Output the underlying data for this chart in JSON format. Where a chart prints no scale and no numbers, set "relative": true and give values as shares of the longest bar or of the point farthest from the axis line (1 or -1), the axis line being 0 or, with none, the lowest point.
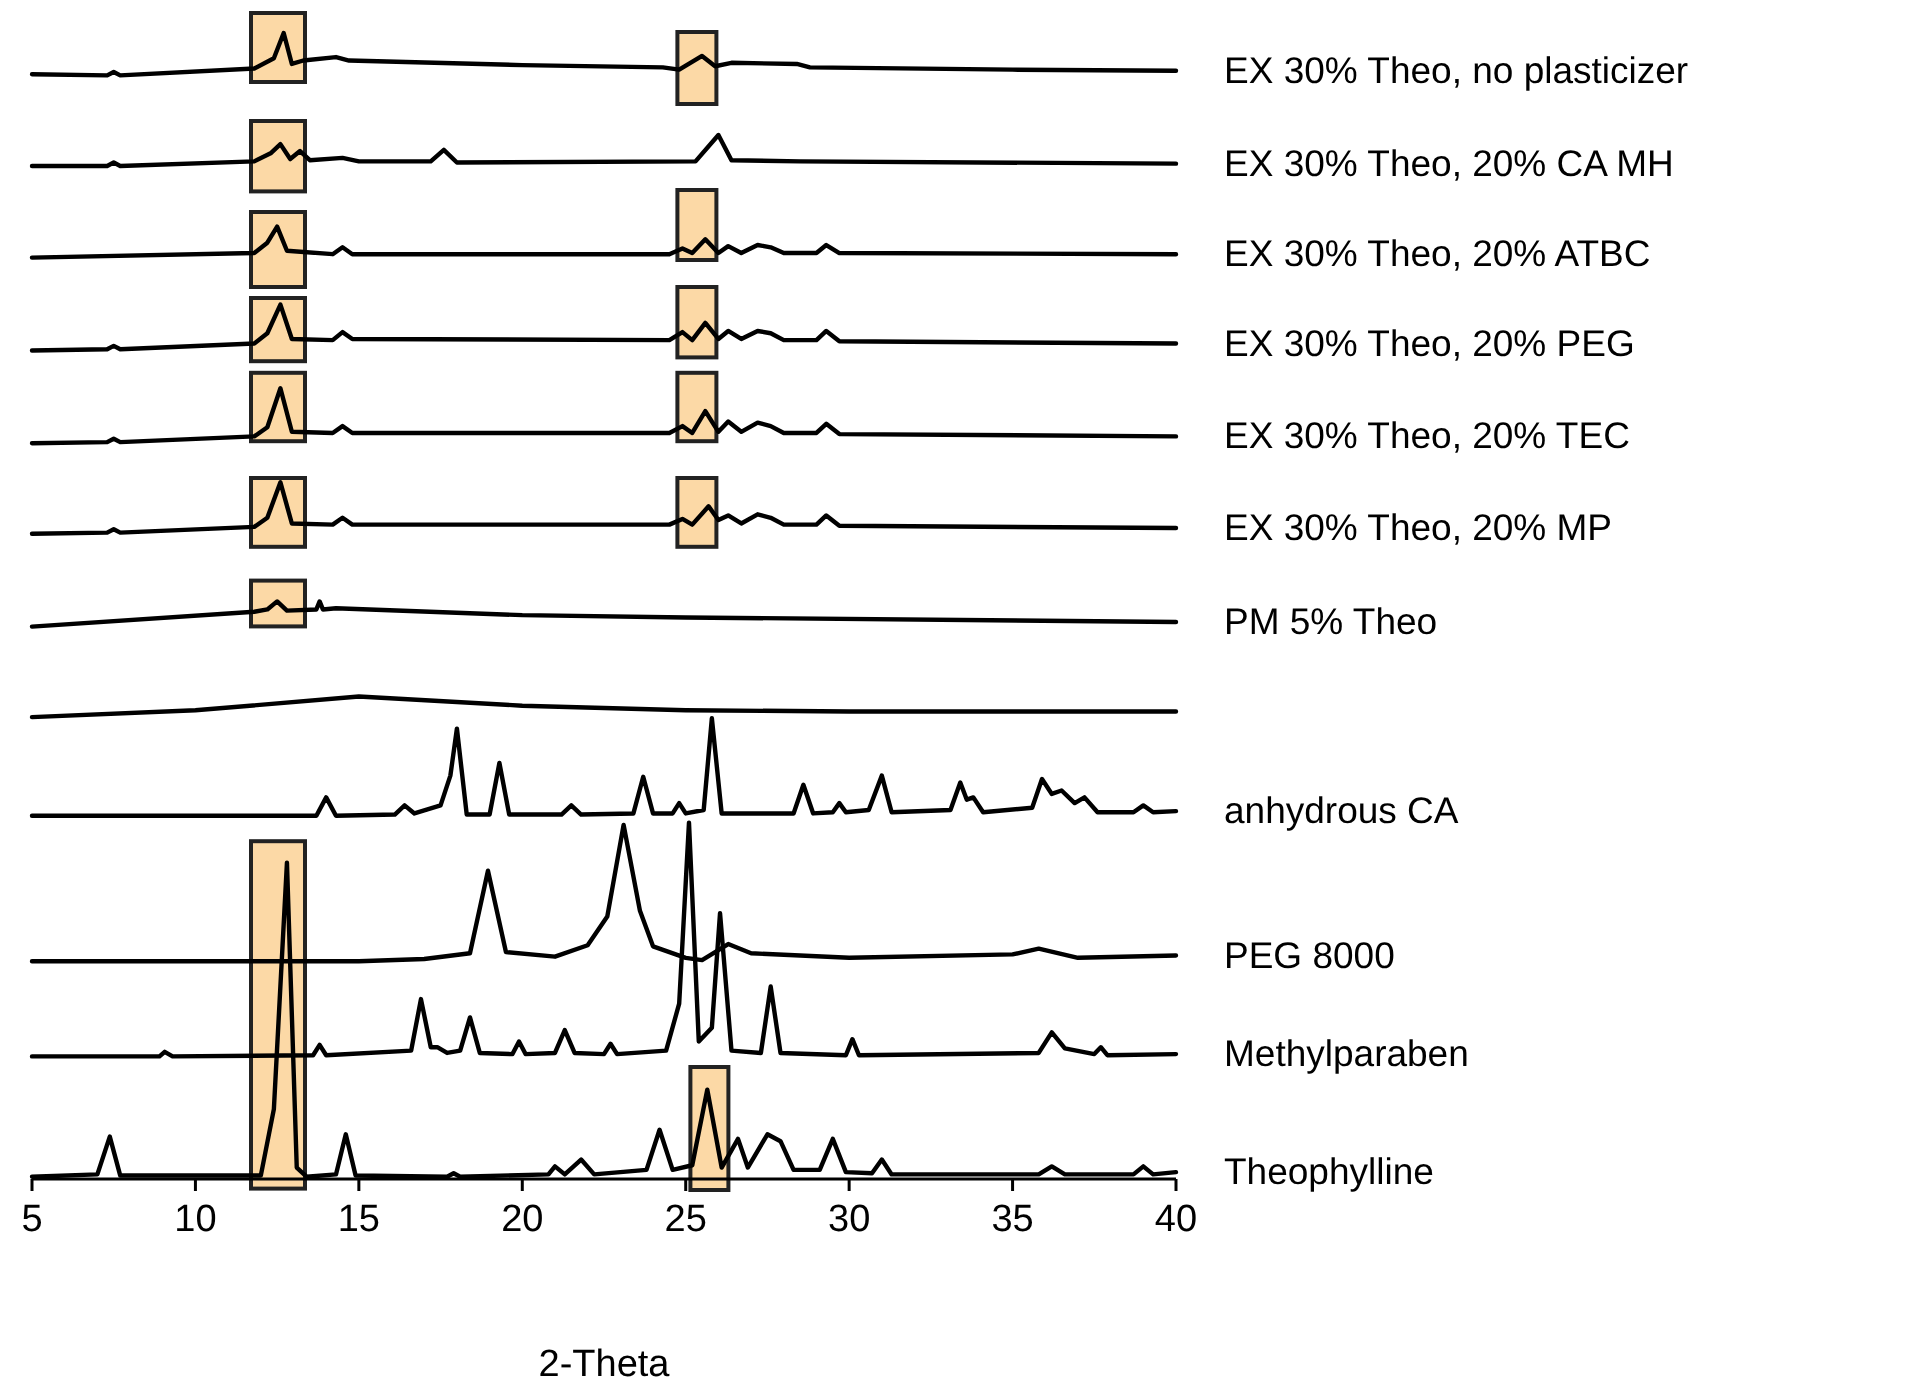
{
  "chart_data": {
    "type": "line",
    "xlabel": "2-Theta",
    "relative": true,
    "xlim": [
      5,
      40
    ],
    "xticks": [
      5,
      10,
      15,
      20,
      25,
      30,
      35,
      40
    ],
    "series": [
      {
        "name": "EX 30% Theo, no plasticizer",
        "color": "#000000",
        "x": [
          5,
          7.3,
          7.5,
          7.7,
          11.8,
          12.4,
          12.7,
          12.95,
          13.3,
          14.3,
          14.7,
          20,
          24.3,
          24.8,
          25.5,
          25.9,
          26.4,
          28.4,
          28.8,
          35,
          40
        ],
        "values": [
          0.964,
          0.963,
          0.966,
          0.963,
          0.969,
          0.978,
          1.0,
          0.973,
          0.976,
          0.979,
          0.976,
          0.972,
          0.97,
          0.968,
          0.98,
          0.971,
          0.974,
          0.973,
          0.97,
          0.968,
          0.967
        ]
      },
      {
        "name": "EX 30% Theo, 20% CA MH",
        "color": "#000000",
        "x": [
          5,
          7.3,
          7.5,
          7.7,
          11.8,
          12.3,
          12.6,
          12.9,
          13.2,
          13.5,
          14.5,
          15,
          17.2,
          17.6,
          18,
          25.3,
          26,
          26.4,
          28.5,
          40
        ],
        "values": [
          0.884,
          0.884,
          0.887,
          0.884,
          0.888,
          0.895,
          0.903,
          0.89,
          0.897,
          0.889,
          0.891,
          0.888,
          0.888,
          0.898,
          0.887,
          0.888,
          0.911,
          0.889,
          0.888,
          0.886
        ]
      },
      {
        "name": "EX 30% Theo, 20% ATBC",
        "color": "#000000",
        "x": [
          5,
          11.8,
          12.2,
          12.5,
          12.8,
          14.2,
          14.5,
          14.8,
          24.5,
          24.9,
          25.2,
          25.6,
          26,
          26.3,
          26.7,
          27.2,
          27.6,
          28,
          29,
          29.3,
          29.7,
          40
        ],
        "values": [
          0.804,
          0.808,
          0.817,
          0.831,
          0.81,
          0.807,
          0.813,
          0.807,
          0.807,
          0.812,
          0.808,
          0.82,
          0.808,
          0.814,
          0.808,
          0.815,
          0.813,
          0.808,
          0.808,
          0.815,
          0.808,
          0.807
        ]
      },
      {
        "name": "EX 30% Theo, 20% PEG",
        "color": "#000000",
        "x": [
          5,
          7.3,
          7.5,
          7.7,
          11.8,
          12.2,
          12.6,
          12.95,
          14.2,
          14.5,
          14.8,
          24.5,
          24.9,
          25.2,
          25.6,
          26,
          26.3,
          26.7,
          27.2,
          27.6,
          28,
          29,
          29.3,
          29.7,
          40
        ],
        "values": [
          0.723,
          0.724,
          0.727,
          0.724,
          0.729,
          0.738,
          0.763,
          0.733,
          0.732,
          0.739,
          0.733,
          0.732,
          0.739,
          0.732,
          0.747,
          0.733,
          0.74,
          0.733,
          0.74,
          0.738,
          0.732,
          0.732,
          0.74,
          0.731,
          0.729
        ]
      },
      {
        "name": "EX 30% Theo, 20% TEC",
        "color": "#000000",
        "x": [
          5,
          7.3,
          7.5,
          7.7,
          11.8,
          12.2,
          12.6,
          12.95,
          14.2,
          14.5,
          14.8,
          24.5,
          24.9,
          25.2,
          25.6,
          26,
          26.3,
          26.7,
          27.2,
          27.6,
          28,
          29,
          29.3,
          29.7,
          40
        ],
        "values": [
          0.642,
          0.643,
          0.646,
          0.643,
          0.648,
          0.656,
          0.69,
          0.652,
          0.651,
          0.657,
          0.651,
          0.651,
          0.657,
          0.651,
          0.67,
          0.652,
          0.661,
          0.652,
          0.66,
          0.657,
          0.651,
          0.651,
          0.659,
          0.65,
          0.648
        ]
      },
      {
        "name": "EX 30% Theo, 20% MP",
        "color": "#000000",
        "x": [
          5,
          7.3,
          7.5,
          7.7,
          11.8,
          12.2,
          12.6,
          12.95,
          14.2,
          14.5,
          14.8,
          24.5,
          24.9,
          25.2,
          25.7,
          26,
          26.3,
          26.7,
          27.2,
          27.6,
          28,
          29,
          29.3,
          29.7,
          40
        ],
        "values": [
          0.563,
          0.564,
          0.567,
          0.564,
          0.569,
          0.577,
          0.608,
          0.572,
          0.571,
          0.577,
          0.571,
          0.571,
          0.576,
          0.571,
          0.587,
          0.575,
          0.579,
          0.572,
          0.58,
          0.577,
          0.571,
          0.571,
          0.579,
          0.57,
          0.568
        ]
      },
      {
        "name": "PM 5% Theo",
        "color": "#000000",
        "x": [
          5,
          11.8,
          12.2,
          12.5,
          12.8,
          13.7,
          13.8,
          13.9,
          14.3,
          20,
          25,
          40
        ],
        "values": [
          0.482,
          0.495,
          0.497,
          0.504,
          0.496,
          0.497,
          0.504,
          0.497,
          0.498,
          0.492,
          0.49,
          0.486
        ]
      },
      {
        "color": "#000000",
        "x": [
          5,
          10,
          15,
          20,
          25,
          30,
          40
        ],
        "values": [
          0.403,
          0.409,
          0.421,
          0.413,
          0.409,
          0.408,
          0.408
        ]
      },
      {
        "name": "anhydrous CA",
        "color": "#000000",
        "x": [
          5,
          13.7,
          14,
          14.3,
          16.1,
          16.4,
          16.7,
          17.5,
          17.8,
          18,
          18.3,
          19,
          19.3,
          19.6,
          21.2,
          21.5,
          21.8,
          23.4,
          23.7,
          24,
          24.6,
          24.8,
          25,
          25.55,
          25.8,
          26.1,
          28.3,
          28.6,
          28.9,
          29.5,
          29.7,
          29.9,
          30.6,
          31,
          31.3,
          33.1,
          33.4,
          33.6,
          33.8,
          34.1,
          35.6,
          35.9,
          36.2,
          36.5,
          36.9,
          37.2,
          37.6,
          38.7,
          39,
          39.3,
          40
        ],
        "values": [
          0.317,
          0.317,
          0.333,
          0.317,
          0.318,
          0.326,
          0.319,
          0.326,
          0.352,
          0.393,
          0.318,
          0.318,
          0.363,
          0.318,
          0.318,
          0.326,
          0.318,
          0.319,
          0.351,
          0.319,
          0.319,
          0.328,
          0.319,
          0.322,
          0.402,
          0.319,
          0.319,
          0.344,
          0.319,
          0.32,
          0.328,
          0.32,
          0.322,
          0.352,
          0.32,
          0.322,
          0.346,
          0.331,
          0.333,
          0.32,
          0.324,
          0.349,
          0.336,
          0.339,
          0.328,
          0.333,
          0.32,
          0.32,
          0.326,
          0.32,
          0.321
        ]
      },
      {
        "name": "PEG 8000",
        "color": "#000000",
        "x": [
          5,
          15,
          17,
          18.4,
          18.95,
          19.5,
          21,
          22,
          22.6,
          23.1,
          23.6,
          24,
          25,
          25.5,
          26.3,
          27,
          30,
          35,
          35.8,
          37,
          40
        ],
        "values": [
          0.19,
          0.19,
          0.192,
          0.197,
          0.269,
          0.198,
          0.194,
          0.204,
          0.229,
          0.309,
          0.234,
          0.203,
          0.193,
          0.191,
          0.205,
          0.197,
          0.193,
          0.196,
          0.201,
          0.193,
          0.195
        ]
      },
      {
        "name": "Methylparaben",
        "color": "#000000",
        "x": [
          5,
          8.9,
          9.06,
          9.3,
          13.6,
          13.8,
          14,
          16.6,
          16.9,
          17.2,
          17.4,
          17.7,
          18.1,
          18.4,
          18.7,
          19.7,
          19.9,
          20.1,
          21,
          21.3,
          21.6,
          22.5,
          22.7,
          22.9,
          24.4,
          24.8,
          25.1,
          25.4,
          25.8,
          26.05,
          26.4,
          27.3,
          27.6,
          27.9,
          29.9,
          30.1,
          30.3,
          35.8,
          36.2,
          36.6,
          37.5,
          37.7,
          37.9,
          40
        ],
        "values": [
          0.107,
          0.107,
          0.111,
          0.107,
          0.108,
          0.117,
          0.108,
          0.112,
          0.157,
          0.115,
          0.115,
          0.11,
          0.112,
          0.141,
          0.11,
          0.109,
          0.12,
          0.109,
          0.11,
          0.13,
          0.11,
          0.109,
          0.118,
          0.109,
          0.112,
          0.153,
          0.311,
          0.12,
          0.132,
          0.232,
          0.112,
          0.11,
          0.168,
          0.11,
          0.108,
          0.122,
          0.108,
          0.11,
          0.128,
          0.114,
          0.109,
          0.115,
          0.108,
          0.109
        ]
      },
      {
        "name": "Theophylline",
        "color": "#000000",
        "x": [
          5,
          7.0,
          7.38,
          7.7,
          12.0,
          12.4,
          12.8,
          13.1,
          13.4,
          14.3,
          14.6,
          14.9,
          17.7,
          17.9,
          18.1,
          20.8,
          21,
          21.3,
          21.8,
          22.2,
          23.8,
          24.2,
          24.6,
          25.2,
          25.66,
          26.1,
          26.6,
          26.9,
          27.5,
          27.9,
          28.3,
          29.1,
          29.5,
          29.9,
          30.7,
          31,
          31.3,
          35.8,
          36.2,
          36.6,
          38.7,
          39,
          39.3,
          40
        ],
        "values": [
          0.002,
          0.004,
          0.037,
          0.003,
          0.003,
          0.061,
          0.276,
          0.01,
          0.002,
          0.004,
          0.039,
          0.003,
          0.002,
          0.005,
          0.002,
          0.004,
          0.011,
          0.004,
          0.017,
          0.004,
          0.008,
          0.043,
          0.008,
          0.012,
          0.078,
          0.01,
          0.035,
          0.01,
          0.039,
          0.033,
          0.008,
          0.008,
          0.035,
          0.006,
          0.005,
          0.017,
          0.004,
          0.004,
          0.011,
          0.004,
          0.004,
          0.011,
          0.004,
          0.006
        ]
      }
    ]
  }
}
